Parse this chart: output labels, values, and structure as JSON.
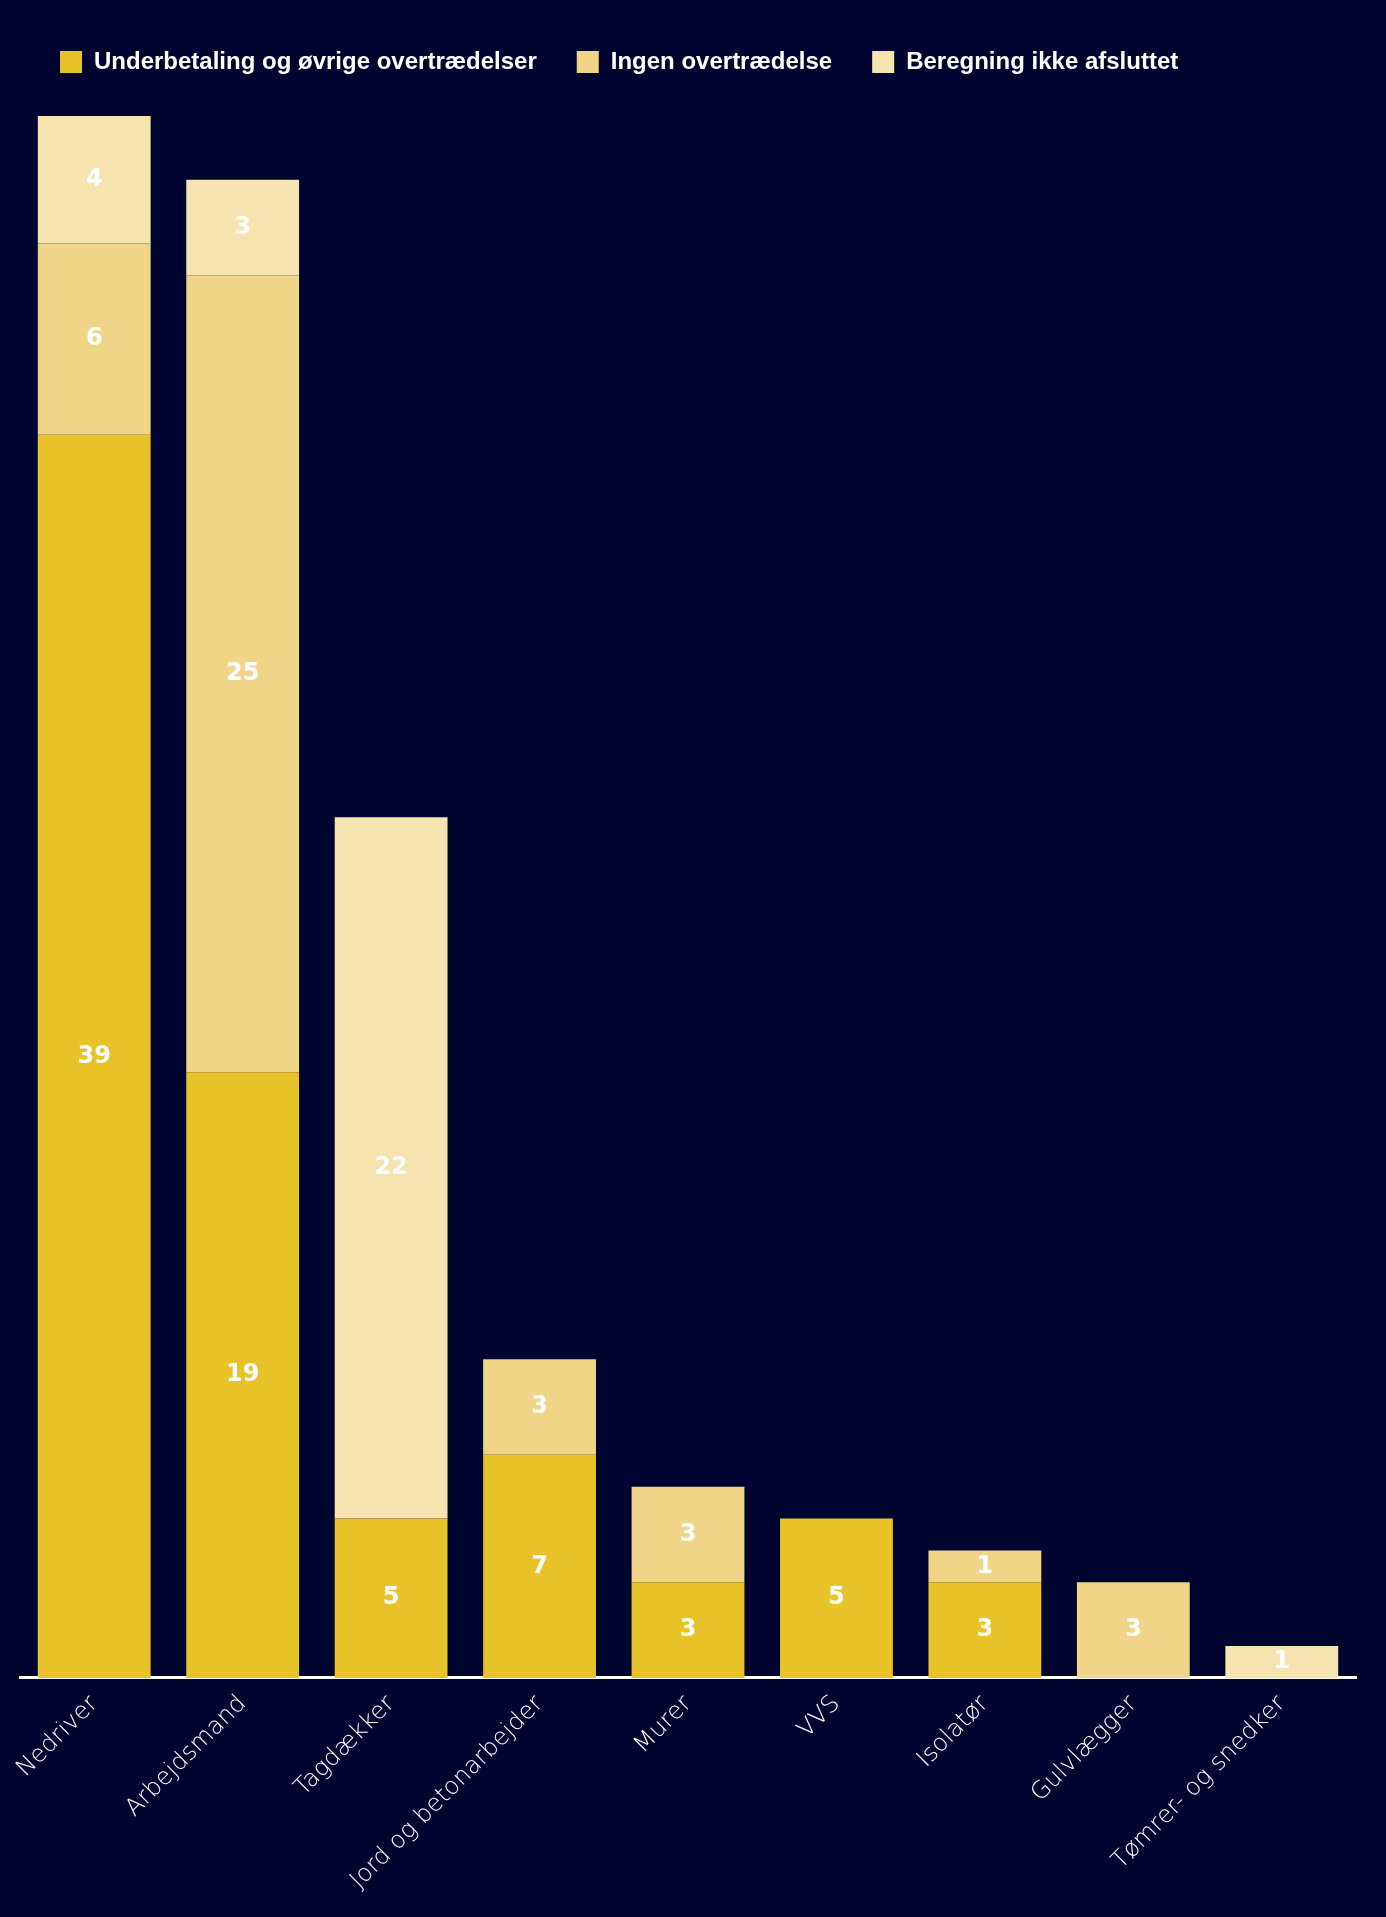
{
  "chart_data": {
    "type": "bar",
    "stacked": true,
    "categories": [
      "Nedriver",
      "Arbejdsmand",
      "Tagdækker",
      "Jord og betonarbejder",
      "Murer",
      "VVS",
      "Isolatør",
      "Gulvlægger",
      "Tømrer- og snedker"
    ],
    "series": [
      {
        "name": "Underbetaling og øvrige overtrædelser",
        "color": "#e8c229",
        "values": [
          39,
          19,
          5,
          7,
          3,
          5,
          3,
          null,
          null
        ]
      },
      {
        "name": "Ingen overtrædelse",
        "color": "#f0d588",
        "values": [
          6,
          25,
          null,
          3,
          3,
          null,
          1,
          3,
          null
        ]
      },
      {
        "name": "Beregning ikke afsluttet",
        "color": "#f5e4af",
        "values": [
          4,
          3,
          22,
          null,
          null,
          null,
          null,
          null,
          1
        ]
      }
    ],
    "data_labels": true,
    "legend": "top",
    "tick_labels": "x"
  }
}
